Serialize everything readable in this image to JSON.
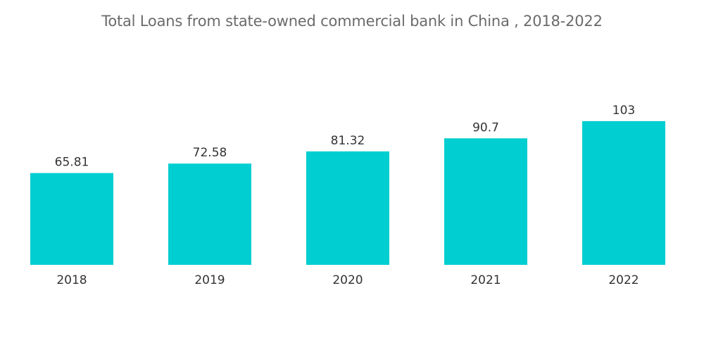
{
  "chart_data": {
    "type": "bar",
    "title": "Total Loans from state-owned commercial bank in China , 2018-2022",
    "categories": [
      "2018",
      "2019",
      "2020",
      "2021",
      "2022"
    ],
    "values": [
      65.81,
      72.58,
      81.32,
      90.7,
      103
    ],
    "value_labels": [
      "65.81",
      "72.58",
      "81.32",
      "90.7",
      "103"
    ],
    "xlabel": "",
    "ylabel": "",
    "ylim": [
      0,
      103
    ],
    "grid": false,
    "legend": "none",
    "colors": {
      "bar": "#00ced1",
      "text": "#333333",
      "title": "#6b6b6b"
    }
  }
}
